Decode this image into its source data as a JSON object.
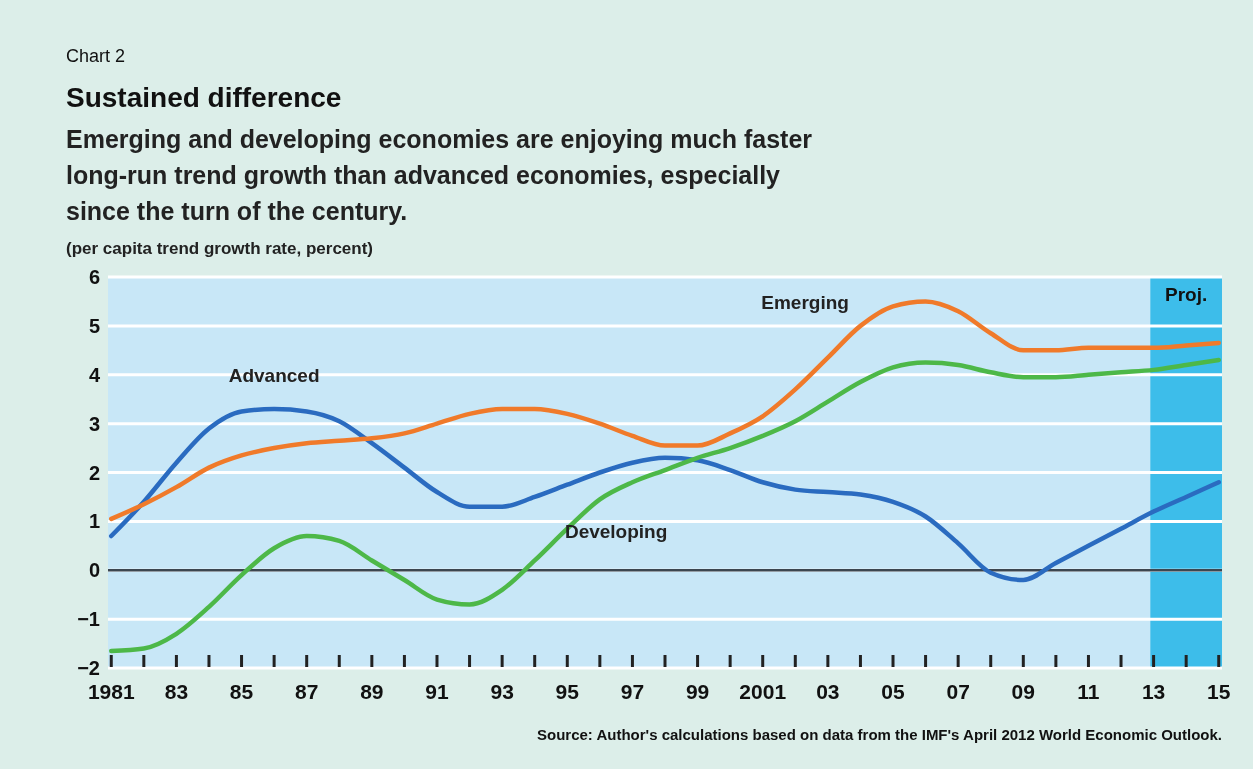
{
  "chart_data": {
    "type": "line",
    "title": "Sustained difference",
    "subtitle": "Emerging and developing economies are enjoying much faster long-run trend growth than advanced economies, especially since the turn of the century.",
    "ylabel": "(per capita trend growth rate, percent)",
    "annotations": [
      "Chart 2",
      "Source: Author's calculations based on data from the IMF's April 2012 World Economic Outlook."
    ],
    "x": [
      1981,
      1982,
      1983,
      1984,
      1985,
      1986,
      1987,
      1988,
      1989,
      1990,
      1991,
      1992,
      1993,
      1994,
      1995,
      1996,
      1997,
      1998,
      1999,
      2000,
      2001,
      2002,
      2003,
      2004,
      2005,
      2006,
      2007,
      2008,
      2009,
      2010,
      2011,
      2012,
      2013,
      2014,
      2015
    ],
    "series": [
      {
        "name": "Advanced",
        "color": "#2a6bc0",
        "values": [
          0.7,
          1.4,
          2.2,
          2.9,
          3.25,
          3.3,
          3.25,
          3.05,
          2.6,
          2.1,
          1.6,
          1.3,
          1.3,
          1.5,
          1.75,
          2.0,
          2.2,
          2.3,
          2.25,
          2.05,
          1.8,
          1.65,
          1.6,
          1.55,
          1.4,
          1.1,
          0.55,
          -0.05,
          -0.2,
          0.15,
          0.5,
          0.85,
          1.2,
          1.5,
          1.8
        ]
      },
      {
        "name": "Emerging",
        "color": "#f07a2a",
        "values": [
          1.05,
          1.35,
          1.7,
          2.1,
          2.35,
          2.5,
          2.6,
          2.65,
          2.7,
          2.8,
          3.0,
          3.2,
          3.3,
          3.3,
          3.2,
          3.0,
          2.75,
          2.55,
          2.55,
          2.8,
          3.15,
          3.7,
          4.35,
          5.0,
          5.4,
          5.5,
          5.3,
          4.85,
          4.5,
          4.5,
          4.55,
          4.55,
          4.55,
          4.6,
          4.65
        ]
      },
      {
        "name": "Developing",
        "color": "#4db848",
        "values": [
          -1.65,
          -1.6,
          -1.3,
          -0.75,
          -0.1,
          0.45,
          0.7,
          0.6,
          0.2,
          -0.2,
          -0.6,
          -0.7,
          -0.4,
          0.2,
          0.85,
          1.45,
          1.8,
          2.05,
          2.3,
          2.5,
          2.75,
          3.05,
          3.45,
          3.85,
          4.15,
          4.25,
          4.2,
          4.05,
          3.95,
          3.95,
          4.0,
          4.05,
          4.1,
          4.2,
          4.3
        ]
      }
    ],
    "xlim": [
      1980.9,
      2015.1
    ],
    "xticks": [
      {
        "value": 1981,
        "label": "1981"
      },
      {
        "value": 1982,
        "label": null
      },
      {
        "value": 1983,
        "label": "83"
      },
      {
        "value": 1984,
        "label": null
      },
      {
        "value": 1985,
        "label": "85"
      },
      {
        "value": 1986,
        "label": null
      },
      {
        "value": 1987,
        "label": "87"
      },
      {
        "value": 1988,
        "label": null
      },
      {
        "value": 1989,
        "label": "89"
      },
      {
        "value": 1990,
        "label": null
      },
      {
        "value": 1991,
        "label": "91"
      },
      {
        "value": 1992,
        "label": null
      },
      {
        "value": 1993,
        "label": "93"
      },
      {
        "value": 1994,
        "label": null
      },
      {
        "value": 1995,
        "label": "95"
      },
      {
        "value": 1996,
        "label": null
      },
      {
        "value": 1997,
        "label": "97"
      },
      {
        "value": 1998,
        "label": null
      },
      {
        "value": 1999,
        "label": "99"
      },
      {
        "value": 2000,
        "label": null
      },
      {
        "value": 2001,
        "label": "2001"
      },
      {
        "value": 2002,
        "label": null
      },
      {
        "value": 2003,
        "label": "03"
      },
      {
        "value": 2004,
        "label": null
      },
      {
        "value": 2005,
        "label": "05"
      },
      {
        "value": 2006,
        "label": null
      },
      {
        "value": 2007,
        "label": "07"
      },
      {
        "value": 2008,
        "label": null
      },
      {
        "value": 2009,
        "label": "09"
      },
      {
        "value": 2010,
        "label": null
      },
      {
        "value": 2011,
        "label": "11"
      },
      {
        "value": 2012,
        "label": null
      },
      {
        "value": 2013,
        "label": "13"
      },
      {
        "value": 2014,
        "label": null
      },
      {
        "value": 2015,
        "label": "15"
      }
    ],
    "ylim": [
      -2,
      6
    ],
    "yticks": [
      {
        "value": -2,
        "label": "−2"
      },
      {
        "value": -1,
        "label": "−1"
      },
      0,
      1,
      2,
      3,
      4,
      5,
      6
    ],
    "grid": "y",
    "marker": "none",
    "line_style": "solid",
    "ref_lines": [
      {
        "axis": "y",
        "value": 0,
        "color": "#3c4650"
      }
    ],
    "bands": [
      {
        "axis": "x",
        "from": 2012.9,
        "to": 2015.1,
        "label": "Proj.",
        "color": "#3dbdea"
      }
    ]
  }
}
